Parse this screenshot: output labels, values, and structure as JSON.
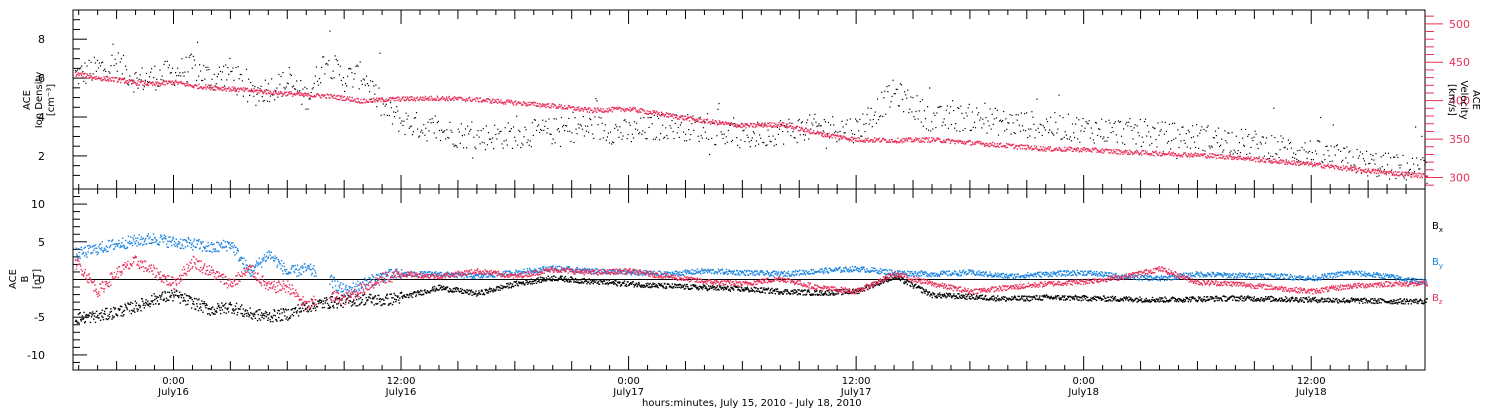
{
  "colors": {
    "black": "#000000",
    "pink": "#e8305a",
    "blue": "#1a84e0"
  },
  "x_axis": {
    "title": "hours:minutes, July 15, 2010 - July 18, 2010",
    "range_hours": [
      -5.3,
      66.0
    ],
    "ticks": [
      {
        "h": 0,
        "top": "0:00",
        "bottom": "July16"
      },
      {
        "h": 12,
        "top": "12:00",
        "bottom": "July16"
      },
      {
        "h": 24,
        "top": "0:00",
        "bottom": "July17"
      },
      {
        "h": 36,
        "top": "12:00",
        "bottom": "July17"
      },
      {
        "h": 48,
        "top": "0:00",
        "bottom": "July18"
      },
      {
        "h": 60,
        "top": "12:00",
        "bottom": "July18"
      }
    ]
  },
  "chart_data": [
    {
      "type": "scatter",
      "panel": "top",
      "left_axis": {
        "label": [
          "ACE",
          "Ion Density",
          "[cm⁻³]"
        ],
        "ylim": [
          0.3,
          9.5
        ],
        "ticks": [
          2,
          4,
          6,
          8
        ]
      },
      "right_axis": {
        "label": [
          "ACE",
          "Velocity",
          "[km/s]"
        ],
        "ylim": [
          285,
          518
        ],
        "ticks": [
          300,
          350,
          400,
          450,
          500
        ]
      },
      "series": [
        {
          "axis": "left",
          "color": "#000000",
          "x": [
            -5,
            -4,
            -3,
            -2,
            -1,
            0,
            1,
            2,
            3,
            4,
            5,
            6,
            7,
            8,
            9,
            10,
            11,
            12,
            14,
            16,
            18,
            20,
            22,
            24,
            26,
            28,
            30,
            32,
            34,
            36,
            38,
            40,
            42,
            44,
            46,
            48,
            50,
            52,
            54,
            56,
            58,
            60,
            62,
            64,
            66
          ],
          "y": [
            6.2,
            6.5,
            6.8,
            5.9,
            6.1,
            6.3,
            6.6,
            6.0,
            6.4,
            5.2,
            5.5,
            5.8,
            5.0,
            7.0,
            6.0,
            6.2,
            4.5,
            3.8,
            3.3,
            3.0,
            3.1,
            3.3,
            3.5,
            3.2,
            3.6,
            3.4,
            3.0,
            3.3,
            3.5,
            3.4,
            5.3,
            3.9,
            4.0,
            3.7,
            3.6,
            3.4,
            3.3,
            3.1,
            3.0,
            2.8,
            2.5,
            2.2,
            1.8,
            1.5,
            1.3
          ]
        },
        {
          "axis": "right",
          "color": "#e8305a",
          "x": [
            -5,
            -4,
            -3,
            -2,
            -1,
            0,
            1,
            2,
            3,
            4,
            5,
            6,
            7,
            8,
            9,
            10,
            11,
            12,
            14,
            16,
            18,
            20,
            22,
            24,
            26,
            28,
            30,
            32,
            34,
            36,
            38,
            40,
            42,
            44,
            46,
            48,
            50,
            52,
            54,
            56,
            58,
            60,
            62,
            64,
            66
          ],
          "y": [
            435,
            430,
            428,
            424,
            422,
            425,
            420,
            418,
            416,
            414,
            412,
            410,
            408,
            407,
            404,
            400,
            402,
            403,
            404,
            402,
            398,
            394,
            388,
            390,
            382,
            374,
            368,
            370,
            358,
            350,
            349,
            350,
            346,
            342,
            338,
            337,
            334,
            332,
            330,
            327,
            322,
            318,
            312,
            307,
            303
          ]
        }
      ]
    },
    {
      "type": "line",
      "panel": "bottom",
      "left_axis": {
        "label": [
          "ACE",
          "B",
          "[nT]"
        ],
        "ylim": [
          -12,
          12
        ],
        "ticks": [
          -10,
          -5,
          0,
          5,
          10
        ]
      },
      "legend": [
        {
          "main": "B",
          "sub": "x",
          "color": "#000000"
        },
        {
          "main": "B",
          "sub": "y",
          "color": "#1a84e0"
        },
        {
          "main": "B",
          "sub": "z",
          "color": "#e8305a"
        }
      ],
      "series": [
        {
          "name": "Bx",
          "color": "#000000",
          "x": [
            -5,
            -4,
            -3,
            -2,
            -1,
            0,
            1,
            2,
            3,
            4,
            5,
            6,
            7,
            8,
            9,
            10,
            11,
            12,
            14,
            16,
            18,
            20,
            22,
            24,
            26,
            28,
            30,
            32,
            34,
            36,
            38,
            40,
            42,
            44,
            46,
            48,
            50,
            52,
            54,
            56,
            58,
            60,
            62,
            64,
            66
          ],
          "y": [
            -5.0,
            -4.8,
            -4.2,
            -3.5,
            -2.5,
            -2.0,
            -3.0,
            -4.0,
            -3.5,
            -4.5,
            -4.8,
            -4.5,
            -3.5,
            -3.0,
            -2.8,
            -2.5,
            -2.7,
            -2.3,
            -1.0,
            -1.8,
            -0.5,
            0.3,
            -0.2,
            -0.5,
            -0.8,
            -1.0,
            -1.2,
            -1.5,
            -1.7,
            -1.5,
            0.5,
            -2.0,
            -2.2,
            -2.5,
            -2.3,
            -2.4,
            -2.5,
            -2.6,
            -2.5,
            -2.4,
            -2.5,
            -2.6,
            -2.7,
            -2.8,
            -2.8
          ]
        },
        {
          "name": "By",
          "color": "#1a84e0",
          "x": [
            -5,
            -4,
            -3,
            -2,
            -1,
            0,
            1,
            2,
            3,
            4,
            5,
            6,
            7,
            8,
            9,
            10,
            11,
            12,
            14,
            16,
            18,
            20,
            22,
            24,
            26,
            28,
            30,
            32,
            34,
            36,
            38,
            40,
            42,
            44,
            46,
            48,
            50,
            52,
            54,
            56,
            58,
            60,
            62,
            64,
            66
          ],
          "y": [
            3.5,
            4.2,
            4.8,
            5.2,
            5.5,
            5.0,
            4.8,
            4.2,
            4.8,
            1.0,
            3.5,
            1.0,
            1.5,
            0.5,
            -1.5,
            -0.5,
            0.5,
            0.8,
            0.8,
            0.5,
            1.0,
            1.6,
            1.2,
            1.0,
            0.8,
            1.2,
            1.0,
            0.8,
            1.2,
            1.5,
            1.0,
            0.8,
            1.0,
            0.5,
            0.8,
            1.0,
            0.5,
            0.2,
            0.8,
            0.6,
            0.6,
            0.2,
            1.0,
            0.5,
            -0.3
          ]
        },
        {
          "name": "Bz",
          "color": "#e8305a",
          "x": [
            -5,
            -4,
            -3,
            -2,
            -1,
            0,
            1,
            2,
            3,
            4,
            5,
            6,
            7,
            8,
            9,
            10,
            11,
            12,
            14,
            16,
            18,
            20,
            22,
            24,
            26,
            28,
            30,
            32,
            34,
            36,
            38,
            40,
            42,
            44,
            46,
            48,
            50,
            52,
            54,
            56,
            58,
            60,
            62,
            64,
            66
          ],
          "y": [
            2.0,
            -1.5,
            1.0,
            2.5,
            1.0,
            -0.5,
            2.5,
            1.0,
            -0.5,
            1.5,
            -1.0,
            -0.8,
            -3.5,
            -2.0,
            -2.5,
            -1.0,
            0.2,
            0.8,
            0.5,
            1.2,
            0.5,
            1.4,
            1.0,
            1.2,
            0.5,
            -0.2,
            -0.5,
            0.2,
            -1.0,
            -1.5,
            0.8,
            -0.5,
            -1.5,
            -1.0,
            -0.5,
            -0.2,
            0.4,
            1.5,
            -0.3,
            -0.5,
            -1.0,
            -1.5,
            -0.8,
            -0.5,
            -0.5
          ]
        }
      ]
    }
  ]
}
